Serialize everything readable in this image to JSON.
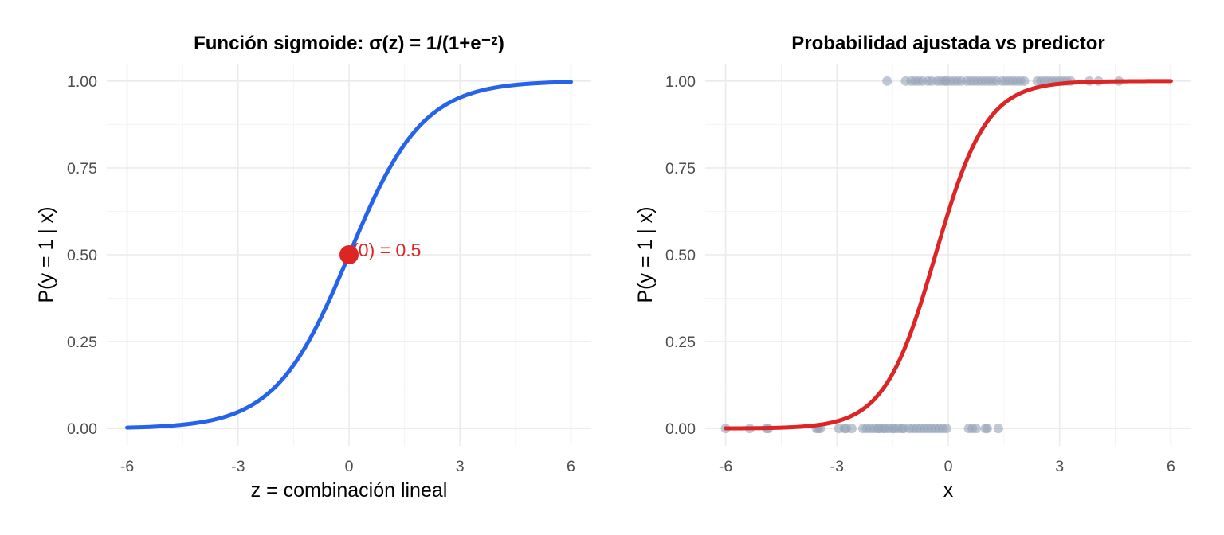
{
  "chart_data": [
    {
      "type": "line",
      "title": "Función sigmoide: σ(z) = 1/(1+e⁻ᶻ)",
      "xlabel": "z = combinación lineal",
      "ylabel": "P(y = 1 | x)",
      "xlim": [
        -6.55,
        6.55
      ],
      "ylim": [
        -0.05,
        1.05
      ],
      "x_ticks": [
        -6,
        -3,
        0,
        3,
        6
      ],
      "x_tick_labels": [
        "-6",
        "-3",
        "0",
        "3",
        "6"
      ],
      "y_ticks": [
        0,
        0.25,
        0.5,
        0.75,
        1
      ],
      "y_tick_labels": [
        "0.00",
        "0.25",
        "0.50",
        "0.75",
        "1.00"
      ],
      "grid": true,
      "series": [
        {
          "function": "sigmoid",
          "slope": 1,
          "intercept": 0,
          "x_range": [
            -6,
            6
          ],
          "color": "#2563eb"
        }
      ],
      "highlight_point": {
        "x": 0,
        "y": 0.5,
        "color": "#dc2626"
      },
      "annotation": {
        "text": "σ(0) = 0.5",
        "x": 0.15,
        "y": 0.5,
        "color": "#dc2626"
      }
    },
    {
      "type": "scatter",
      "title": "Probabilidad ajustada vs predictor",
      "xlabel": "x",
      "ylabel": "P(y = 1 | x)",
      "xlim": [
        -6.55,
        6.55
      ],
      "ylim": [
        -0.05,
        1.05
      ],
      "x_ticks": [
        -6,
        -3,
        0,
        3,
        6
      ],
      "x_tick_labels": [
        "-6",
        "-3",
        "0",
        "3",
        "6"
      ],
      "y_ticks": [
        0,
        0.25,
        0.5,
        0.75,
        1
      ],
      "y_tick_labels": [
        "0.00",
        "0.25",
        "0.50",
        "0.75",
        "1.00"
      ],
      "grid": true,
      "points_color": "#94a3b8",
      "points_y1": [
        -1.65,
        -1.15,
        -1.0,
        -0.9,
        -0.8,
        -0.7,
        -0.55,
        -0.45,
        -0.3,
        -0.2,
        -0.1,
        -0.05,
        0.05,
        0.15,
        0.25,
        0.35,
        0.5,
        0.6,
        0.7,
        0.8,
        0.9,
        1.0,
        1.1,
        1.2,
        1.3,
        1.45,
        1.55,
        1.65,
        1.75,
        1.85,
        1.95,
        2.05,
        2.4,
        2.5,
        2.6,
        2.7,
        2.8,
        2.9,
        3.0,
        3.1,
        3.2,
        3.3,
        3.8,
        4.05,
        4.6
      ],
      "points_y0": [
        -6.0,
        -5.35,
        -4.9,
        -4.85,
        -3.55,
        -3.5,
        -3.45,
        -2.95,
        -2.8,
        -2.75,
        -2.6,
        -2.3,
        -2.2,
        -2.1,
        -2.0,
        -1.9,
        -1.85,
        -1.75,
        -1.7,
        -1.6,
        -1.5,
        -1.45,
        -1.35,
        -1.25,
        -1.2,
        -1.05,
        -0.95,
        -0.85,
        -0.75,
        -0.65,
        -0.55,
        -0.45,
        -0.35,
        -0.25,
        -0.15,
        -0.05,
        0.55,
        0.65,
        0.75,
        1.0,
        1.05,
        1.35
      ],
      "series": [
        {
          "function": "sigmoid",
          "slope": 1.45,
          "intercept": 0.5,
          "x_range": [
            -6,
            6
          ],
          "color": "#dc2626"
        }
      ]
    }
  ]
}
